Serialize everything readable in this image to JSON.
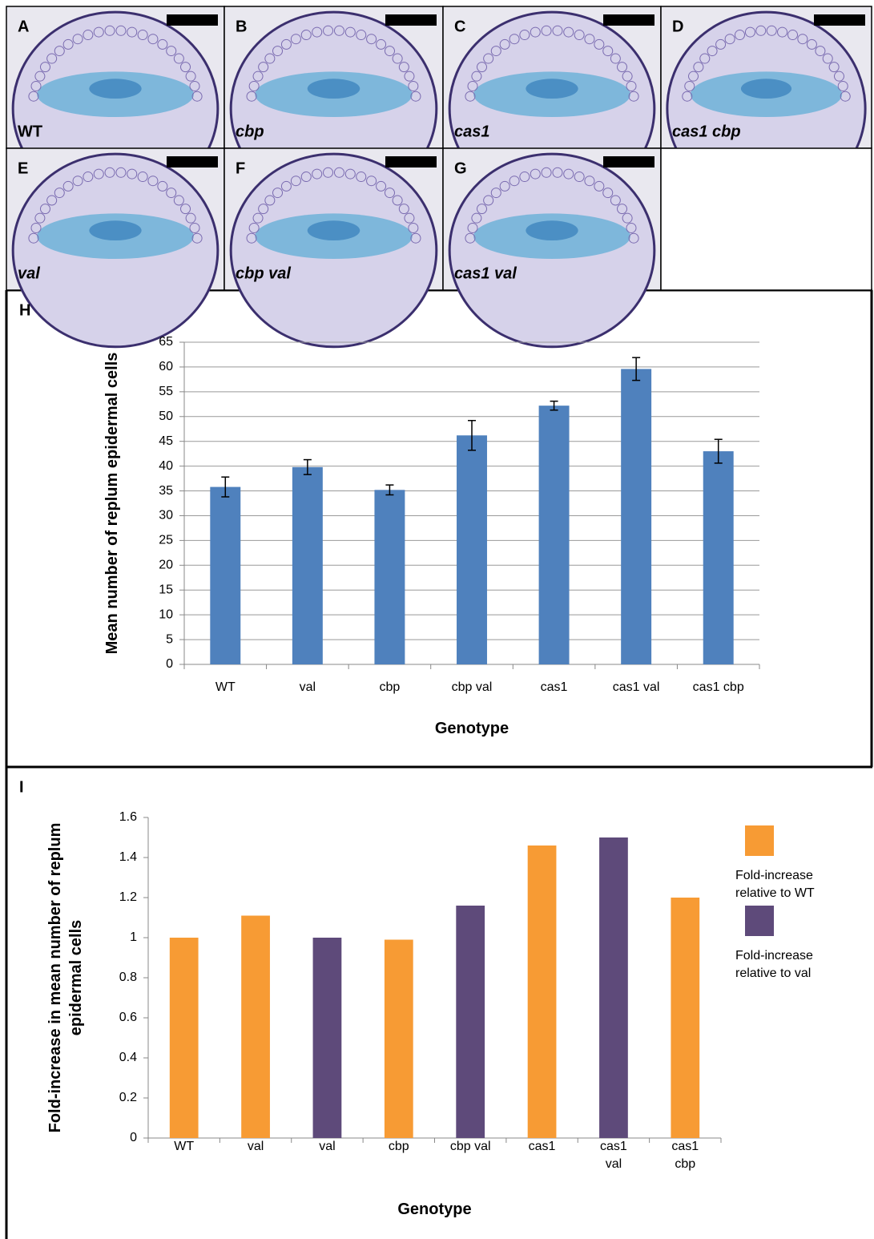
{
  "panels": [
    {
      "letter": "A",
      "genotype": "WT",
      "italic": false
    },
    {
      "letter": "B",
      "genotype": "cbp",
      "italic": true
    },
    {
      "letter": "C",
      "genotype": "cas1",
      "italic": true
    },
    {
      "letter": "D",
      "genotype": "cas1 cbp",
      "italic": true
    },
    {
      "letter": "E",
      "genotype": "val",
      "italic": true
    },
    {
      "letter": "F",
      "genotype": "cbp val",
      "italic": true
    },
    {
      "letter": "G",
      "genotype": "cas1 val",
      "italic": true
    }
  ],
  "chart_data": [
    {
      "type": "bar",
      "panel": "H",
      "xlabel": "Genotype",
      "ylabel": "Mean number of replum epidermal cells",
      "categories": [
        "WT",
        "val",
        "cbp",
        "cbp val",
        "cas1",
        "cas1 val",
        "cas1 cbp"
      ],
      "values": [
        35.8,
        39.8,
        35.2,
        46.2,
        52.2,
        59.6,
        43.0
      ],
      "errors": [
        2.0,
        1.5,
        1.0,
        3.0,
        0.9,
        2.3,
        2.4
      ],
      "color": "#4f81bd",
      "ylim": [
        0,
        65
      ],
      "yticks": [
        0,
        5,
        10,
        15,
        20,
        25,
        30,
        35,
        40,
        45,
        50,
        55,
        60,
        65
      ],
      "grid": true
    },
    {
      "type": "bar",
      "panel": "I",
      "xlabel": "Genotype",
      "ylabel": "Fold-increase in mean number of replum epidermal cells",
      "categories": [
        "WT",
        "val",
        "val",
        "cbp",
        "cbp val",
        "cas1",
        "cas1 val",
        "cas1 cbp"
      ],
      "series": [
        {
          "name": "Fold-increase relative to WT",
          "color": "#f79b34",
          "values": [
            1,
            1.11,
            null,
            0.99,
            null,
            1.46,
            null,
            1.2
          ]
        },
        {
          "name": "Fold-increase relative to val",
          "color": "#5e4a7a",
          "values": [
            null,
            null,
            1,
            null,
            1.16,
            null,
            1.5,
            null
          ]
        }
      ],
      "ylim": [
        0,
        1.6
      ],
      "yticks": [
        0,
        0.2,
        0.4,
        0.6,
        0.8,
        1,
        1.2,
        1.4,
        1.6
      ],
      "grid": false,
      "legend": "right"
    }
  ]
}
